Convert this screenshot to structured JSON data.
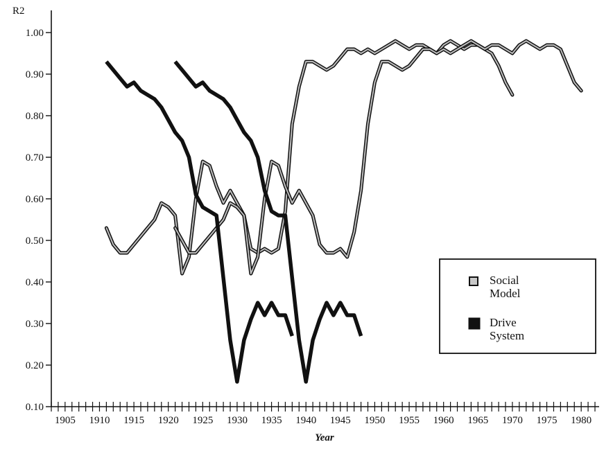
{
  "chart_data": {
    "type": "line",
    "title": "",
    "ylabel": "R2",
    "xlabel": "Year",
    "xlim": [
      1903,
      1982
    ],
    "ylim": [
      0.1,
      1.0
    ],
    "x_ticks": [
      1905,
      1910,
      1915,
      1920,
      1925,
      1930,
      1935,
      1940,
      1945,
      1950,
      1955,
      1960,
      1965,
      1970,
      1975,
      1980
    ],
    "x_tick_labels": [
      "1905",
      "1910",
      "1915",
      "1920",
      "1925",
      "1930",
      "1935",
      "1940",
      "1945",
      "1950",
      "1955",
      "1960",
      "1965",
      "1970",
      "1975",
      "1980"
    ],
    "y_ticks": [
      0.1,
      0.2,
      0.3,
      0.4,
      0.5,
      0.6,
      0.7,
      0.8,
      0.9,
      1.0
    ],
    "y_tick_labels": [
      "0.10",
      "0.20",
      "0.30",
      "0.40",
      "0.50",
      "0.60",
      "0.70",
      "0.80",
      "0.90",
      "1.00"
    ],
    "grid": false,
    "legend_position": "right",
    "legend": [
      {
        "label_lines": [
          "Social",
          "Model"
        ],
        "style": "social"
      },
      {
        "label_lines": [
          "Drive",
          "System"
        ],
        "style": "drive"
      }
    ],
    "series": [
      {
        "style": "social",
        "x": [
          1911,
          1912,
          1913,
          1914,
          1915,
          1916,
          1917,
          1918,
          1919,
          1920,
          1921,
          1922,
          1923,
          1924,
          1925,
          1926,
          1927,
          1928,
          1929,
          1930,
          1931,
          1932,
          1933,
          1934,
          1935,
          1936,
          1937,
          1938,
          1939,
          1940,
          1941,
          1942,
          1943,
          1944,
          1945,
          1946,
          1947,
          1948,
          1949,
          1950,
          1951,
          1952,
          1953,
          1954,
          1955,
          1956,
          1957,
          1958,
          1959,
          1960,
          1961,
          1962,
          1963,
          1964,
          1965,
          1966,
          1967,
          1968,
          1969,
          1970
        ],
        "values": [
          0.53,
          0.49,
          0.47,
          0.47,
          0.49,
          0.51,
          0.53,
          0.55,
          0.59,
          0.58,
          0.56,
          0.42,
          0.46,
          0.6,
          0.69,
          0.68,
          0.63,
          0.59,
          0.62,
          0.59,
          0.56,
          0.48,
          0.47,
          0.48,
          0.47,
          0.48,
          0.57,
          0.78,
          0.87,
          0.93,
          0.93,
          0.92,
          0.91,
          0.92,
          0.94,
          0.96,
          0.96,
          0.95,
          0.96,
          0.95,
          0.96,
          0.97,
          0.98,
          0.97,
          0.96,
          0.97,
          0.97,
          0.96,
          0.95,
          0.97,
          0.98,
          0.97,
          0.96,
          0.97,
          0.97,
          0.96,
          0.95,
          0.92,
          0.88,
          0.85
        ]
      },
      {
        "style": "social",
        "x": [
          1921,
          1922,
          1923,
          1924,
          1925,
          1926,
          1927,
          1928,
          1929,
          1930,
          1931,
          1932,
          1933,
          1934,
          1935,
          1936,
          1937,
          1938,
          1939,
          1940,
          1941,
          1942,
          1943,
          1944,
          1945,
          1946,
          1947,
          1948,
          1949,
          1950,
          1951,
          1952,
          1953,
          1954,
          1955,
          1956,
          1957,
          1958,
          1959,
          1960,
          1961,
          1962,
          1963,
          1964,
          1965,
          1966,
          1967,
          1968,
          1969,
          1970,
          1971,
          1972,
          1973,
          1974,
          1975,
          1976,
          1977,
          1978,
          1979,
          1980
        ],
        "values": [
          0.53,
          0.5,
          0.47,
          0.47,
          0.49,
          0.51,
          0.53,
          0.55,
          0.59,
          0.58,
          0.56,
          0.42,
          0.46,
          0.6,
          0.69,
          0.68,
          0.63,
          0.59,
          0.62,
          0.59,
          0.56,
          0.49,
          0.47,
          0.47,
          0.48,
          0.46,
          0.52,
          0.62,
          0.78,
          0.88,
          0.93,
          0.93,
          0.92,
          0.91,
          0.92,
          0.94,
          0.96,
          0.96,
          0.95,
          0.96,
          0.95,
          0.96,
          0.97,
          0.98,
          0.97,
          0.96,
          0.97,
          0.97,
          0.96,
          0.95,
          0.97,
          0.98,
          0.97,
          0.96,
          0.97,
          0.97,
          0.96,
          0.92,
          0.88,
          0.86
        ]
      },
      {
        "style": "drive",
        "x": [
          1911,
          1912,
          1913,
          1914,
          1915,
          1916,
          1917,
          1918,
          1919,
          1920,
          1921,
          1922,
          1923,
          1924,
          1925,
          1926,
          1927,
          1928,
          1929,
          1930,
          1931,
          1932,
          1933,
          1934,
          1935,
          1936,
          1937,
          1938
        ],
        "values": [
          0.93,
          0.91,
          0.89,
          0.87,
          0.88,
          0.86,
          0.85,
          0.84,
          0.82,
          0.79,
          0.76,
          0.74,
          0.7,
          0.61,
          0.58,
          0.57,
          0.56,
          0.41,
          0.26,
          0.16,
          0.26,
          0.31,
          0.35,
          0.32,
          0.35,
          0.32,
          0.32,
          0.27
        ]
      },
      {
        "style": "drive",
        "x": [
          1921,
          1922,
          1923,
          1924,
          1925,
          1926,
          1927,
          1928,
          1929,
          1930,
          1931,
          1932,
          1933,
          1934,
          1935,
          1936,
          1937,
          1938,
          1939,
          1940,
          1941,
          1942,
          1943,
          1944,
          1945,
          1946,
          1947,
          1948
        ],
        "values": [
          0.93,
          0.91,
          0.89,
          0.87,
          0.88,
          0.86,
          0.85,
          0.84,
          0.82,
          0.79,
          0.76,
          0.74,
          0.7,
          0.62,
          0.57,
          0.56,
          0.56,
          0.41,
          0.26,
          0.16,
          0.26,
          0.31,
          0.35,
          0.32,
          0.35,
          0.32,
          0.32,
          0.27
        ]
      }
    ]
  }
}
